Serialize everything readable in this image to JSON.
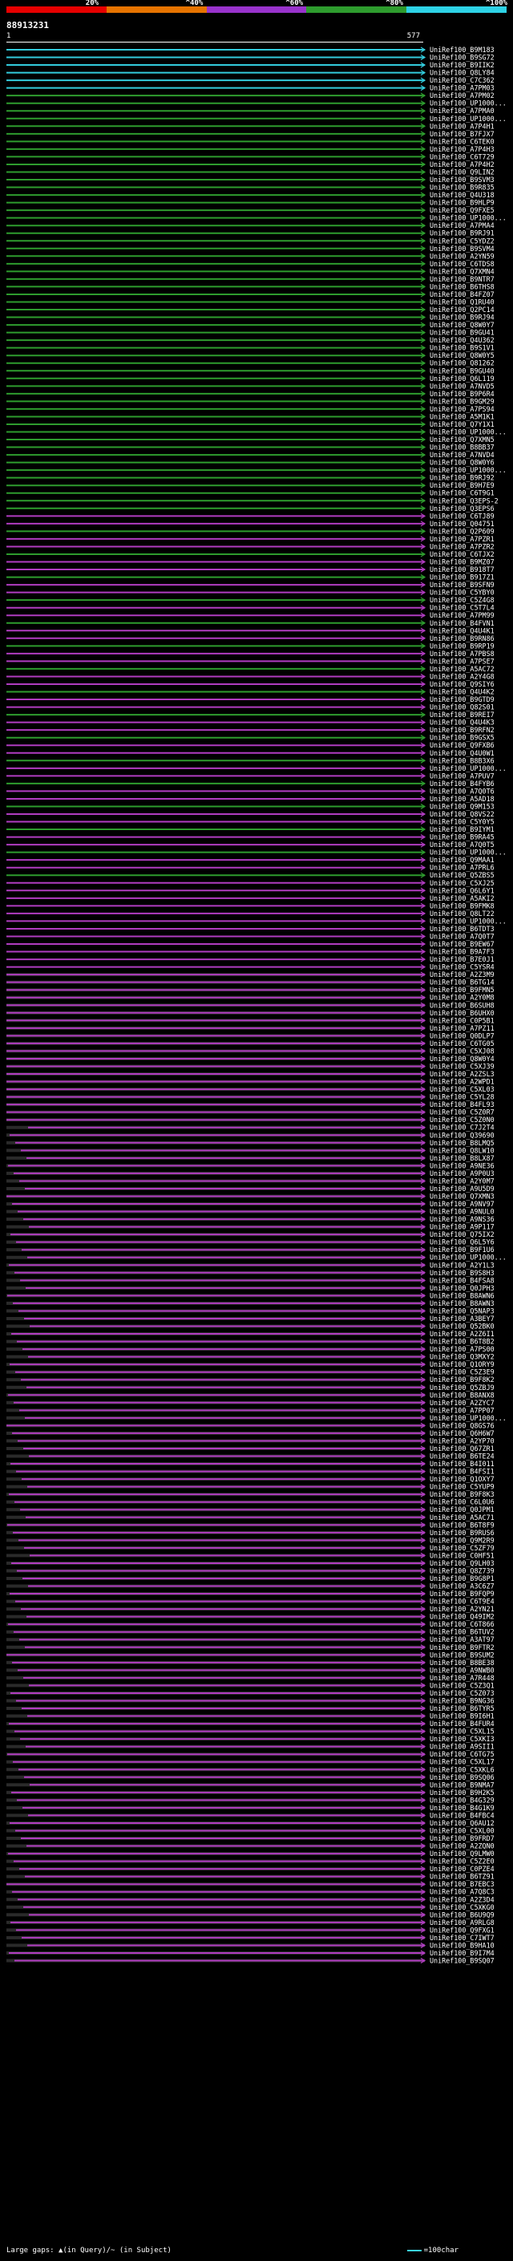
{
  "header": {
    "scale_ticks": [
      "20%",
      "^40%",
      "^60%",
      "^80%",
      "^100%"
    ],
    "scale_colors": [
      "#e60000",
      "#e67300",
      "#9933cc",
      "#2e9c2e",
      "#2ed2e6"
    ],
    "query_id": "88913231",
    "query_start": "1",
    "query_end": "577"
  },
  "colors": {
    "cyan": "#33ccdd",
    "green": "#2e9c2e",
    "magenta": "#b03cc0",
    "gap": "#2a2a2a"
  },
  "hits": [
    "UniRef100_B9M183",
    "UniRef100_B9SG72",
    "UniRef100_B9IIK2",
    "UniRef100_Q8LY84",
    "UniRef100_C7C362",
    "UniRef100_A7PM03",
    "UniRef100_A7PM02",
    "UniRef100_UP1000...",
    "UniRef100_A7PMA0",
    "UniRef100_UP1000...",
    "UniRef100_A7P4H1",
    "UniRef100_B7FJX7",
    "UniRef100_C6TEK0",
    "UniRef100_A7P4H3",
    "UniRef100_C6T729",
    "UniRef100_A7P4H2",
    "UniRef100_Q9LIN2",
    "UniRef100_B9SVM3",
    "UniRef100_B9R835",
    "UniRef100_Q4U318",
    "UniRef100_B9HLP9",
    "UniRef100_Q9FXE5",
    "UniRef100_UP1000...",
    "UniRef100_A7PMA4",
    "UniRef100_B9RJ91",
    "UniRef100_C5YDZ2",
    "UniRef100_B9SVM4",
    "UniRef100_A2YN59",
    "UniRef100_C6TDS8",
    "UniRef100_Q7XMN4",
    "UniRef100_B9NTR7",
    "UniRef100_B6THS8",
    "UniRef100_B4FZ07",
    "UniRef100_Q1RU40",
    "UniRef100_Q2PC14",
    "UniRef100_B9RJ94",
    "UniRef100_Q8W0Y7",
    "UniRef100_B9GU41",
    "UniRef100_Q4U362",
    "UniRef100_B9S1V1",
    "UniRef100_Q8W0Y5",
    "UniRef100_Q81262",
    "UniRef100_B9GU40",
    "UniRef100_Q6L119",
    "UniRef100_A7NVD5",
    "UniRef100_B9P6R4",
    "UniRef100_B9GM29",
    "UniRef100_A7PS94",
    "UniRef100_A5M1K1",
    "UniRef100_Q7Y1X1",
    "UniRef100_UP1000...",
    "UniRef100_Q7XMN5",
    "UniRef100_B8BB37",
    "UniRef100_A7NVD4",
    "UniRef100_Q8W0Y6",
    "UniRef100_UP1000...",
    "UniRef100_B9RJ92",
    "UniRef100_B9H7E9",
    "UniRef100_C6T9G1",
    "UniRef100_Q3EPS-2",
    "UniRef100_Q3EPS6",
    "UniRef100_C6TJ89",
    "UniRef100_Q04751",
    "UniRef100_Q2P609",
    "UniRef100_A7PZR1",
    "UniRef100_A7PZR2",
    "UniRef100_C6TJX2",
    "UniRef100_B9MZ07",
    "UniRef100_B918T7",
    "UniRef100_B917Z1",
    "UniRef100_B9SFN9",
    "UniRef100_C5YBY0",
    "UniRef100_C5Z4G8",
    "UniRef100_C5T7L4",
    "UniRef100_A7PM99",
    "UniRef100_B4FVN1",
    "UniRef100_Q4U4K1",
    "UniRef100_B9RN86",
    "UniRef100_B9RP19",
    "UniRef100_A7PBS8",
    "UniRef100_A7PSE7",
    "UniRef100_A5AC72",
    "UniRef100_A2Y4G8",
    "UniRef100_Q9SIY6",
    "UniRef100_Q4U4K2",
    "UniRef100_B9GTD9",
    "UniRef100_Q82S01",
    "UniRef100_B9REI7",
    "UniRef100_Q4U4K3",
    "UniRef100_B9RFN2",
    "UniRef100_B9GSX5",
    "UniRef100_Q9FXB6",
    "UniRef100_Q4U0W1",
    "UniRef100_B8B3X6",
    "UniRef100_UP1000...",
    "UniRef100_A7PUV7",
    "UniRef100_B4FYB6",
    "UniRef100_A7Q0T6",
    "UniRef100_A5AD18",
    "UniRef100_Q9M153",
    "UniRef100_Q8VS22",
    "UniRef100_C5Y0Y5",
    "UniRef100_B9IYM1",
    "UniRef100_B9RA45",
    "UniRef100_A7Q0T5",
    "UniRef100_UP1000...",
    "UniRef100_Q9MAA1",
    "UniRef100_A7PRL6",
    "UniRef100_Q5ZBS5",
    "UniRef100_C5XJ25",
    "UniRef100_Q6L6Y1",
    "UniRef100_A5AKI2",
    "UniRef100_B9FMK8",
    "UniRef100_Q8LT22",
    "UniRef100_UP1000...",
    "UniRef100_B6TDT3",
    "UniRef100_A7Q0T7",
    "UniRef100_B9EW67",
    "UniRef100_B9A7F3",
    "UniRef100_B7E0J1",
    "UniRef100_C5YSR4",
    "UniRef100_A2Z3M9",
    "UniRef100_B6TG14",
    "UniRef100_B9FMN5",
    "UniRef100_A2Y0M8",
    "UniRef100_B6SUH8",
    "UniRef100_B6UHX0",
    "UniRef100_C0P5B1",
    "UniRef100_A7PZ11",
    "UniRef100_Q0DLP7",
    "UniRef100_C6TG05",
    "UniRef100_C5XJ08",
    "UniRef100_Q8W0Y4",
    "UniRef100_C5XJ39",
    "UniRef100_A2ZSL3",
    "UniRef100_A2WPD1",
    "UniRef100_C5XL03",
    "UniRef100_C5YL28",
    "UniRef100_B4FL93",
    "UniRef100_C5Z0R7",
    "UniRef100_C5Z0N0",
    "UniRef100_C7J2T4",
    "UniRef100_Q39690",
    "UniRef100_B8LMQ5",
    "UniRef100_Q8LW10",
    "UniRef100_B8LX87",
    "UniRef100_A9NE36",
    "UniRef100_A9P0U3",
    "UniRef100_A2Y0M7",
    "UniRef100_A9U5D9",
    "UniRef100_Q7XMN3",
    "UniRef100_A9NV97",
    "UniRef100_A9NUL0",
    "UniRef100_A9NS36",
    "UniRef100_A9P117",
    "UniRef100_Q75IX2",
    "UniRef100_Q6L5Y6",
    "UniRef100_B9F1U6",
    "UniRef100_UP1000...",
    "UniRef100_A2Y1L3",
    "UniRef100_B9S8H3",
    "UniRef100_B4FSA8",
    "UniRef100_Q0JPH3",
    "UniRef100_B8AWN6",
    "UniRef100_B8AWN3",
    "UniRef100_Q5NAP3",
    "UniRef100_A3BEY7",
    "UniRef100_Q52BK0",
    "UniRef100_A2Z6I1",
    "UniRef100_B6T8B2",
    "UniRef100_A7PS00",
    "UniRef100_Q3MXY2",
    "UniRef100_Q1ORY9",
    "UniRef100_C5Z3E9",
    "UniRef100_B9F8K2",
    "UniRef100_Q5ZBJ9",
    "UniRef100_B8ANX8",
    "UniRef100_A2ZYC7",
    "UniRef100_A7PP07",
    "UniRef100_UP1000...",
    "UniRef100_Q8GS76",
    "UniRef100_Q6H6W7",
    "UniRef100_A2YP70",
    "UniRef100_Q67ZR1",
    "UniRef100_B6TE24",
    "UniRef100_B4I011",
    "UniRef100_B4FSI1",
    "UniRef100_Q1OXY7",
    "UniRef100_C5YUP9",
    "UniRef100_B9F8K3",
    "UniRef100_C6L0U6",
    "UniRef100_Q0JPM1",
    "UniRef100_A5AC71",
    "UniRef100_B6T8F9",
    "UniRef100_B9RUS6",
    "UniRef100_Q9M2R9",
    "UniRef100_C5ZF79",
    "UniRef100_C0HF51",
    "UniRef100_Q9LH03",
    "UniRef100_Q8Z739",
    "UniRef100_B9G8P1",
    "UniRef100_A3C6Z7",
    "UniRef100_B9FQP9",
    "UniRef100_C6T9E4",
    "UniRef100_A2YN21",
    "UniRef100_Q49IM2",
    "UniRef100_C6T866",
    "UniRef100_B6TUV2",
    "UniRef100_A3AT97",
    "UniRef100_B9FTR2",
    "UniRef100_B9SUM2",
    "UniRef100_B8BE38",
    "UniRef100_A9NWB0",
    "UniRef100_A7R448",
    "UniRef100_C5Z3Q1",
    "UniRef100_C5Z073",
    "UniRef100_B9NG36",
    "UniRef100_B6TYR5",
    "UniRef100_B9I6H1",
    "UniRef100_B4FUR4",
    "UniRef100_C5XL15",
    "UniRef100_C5XKI3",
    "UniRef100_A9SII1",
    "UniRef100_C6TG75",
    "UniRef100_C5XL17",
    "UniRef100_C5XKL6",
    "UniRef100_B9SQ06",
    "UniRef100_B9NMA7",
    "UniRef100_B9H2K5",
    "UniRef100_B4G329",
    "UniRef100_B4G1K9",
    "UniRef100_B4FBC4",
    "UniRef100_Q6AU12",
    "UniRef100_C5XL00",
    "UniRef100_B9FRD7",
    "UniRef100_A2ZQN0",
    "UniRef100_Q9LMW0",
    "UniRef100_C5Z2E0",
    "UniRef100_C0PZE4",
    "UniRef100_B6TZ91",
    "UniRef100_B7EBC3",
    "UniRef100_A7Q8C3",
    "UniRef100_A2Z3D4",
    "UniRef100_C5XKG0",
    "UniRef100_B6U9Q9",
    "UniRef100_A9RLG8",
    "UniRef100_Q9FXG1",
    "UniRef100_C7IWT7",
    "UniRef100_B9HA10",
    "UniRef100_B9I7M4",
    "UniRef100_B9SQ07"
  ],
  "legend": {
    "left_text": "Large gaps: ▲(in Query)/~ (in Subject)",
    "right_text": "=100char"
  }
}
